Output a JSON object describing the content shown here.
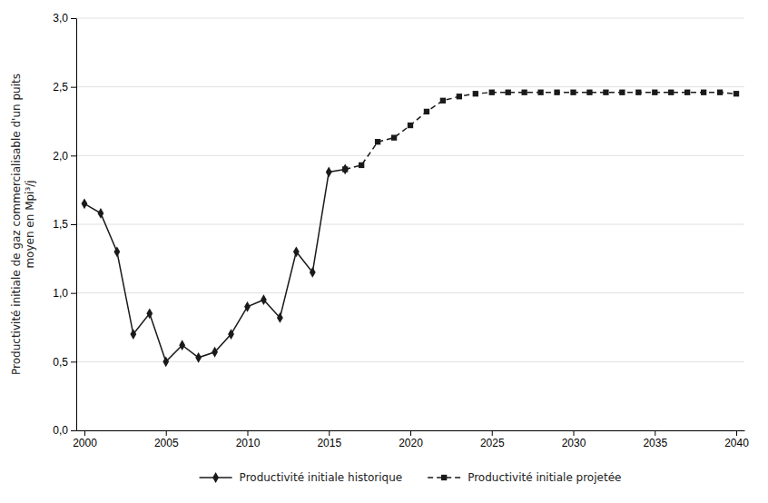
{
  "chart_data": {
    "type": "line",
    "ylabel": [
      "Productivité initiale de gaz commercialisable d'un puits",
      "moyen en Mpi³/j"
    ],
    "x": [
      2000,
      2001,
      2002,
      2003,
      2004,
      2005,
      2006,
      2007,
      2008,
      2009,
      2010,
      2011,
      2012,
      2013,
      2014,
      2015,
      2016,
      2017,
      2018,
      2019,
      2020,
      2021,
      2022,
      2023,
      2024,
      2025,
      2026,
      2027,
      2028,
      2029,
      2030,
      2031,
      2032,
      2033,
      2034,
      2035,
      2036,
      2037,
      2038,
      2039,
      2040
    ],
    "series": [
      {
        "name": "Productivité initiale historique",
        "color": "#1a1a1a",
        "marker": "diamond",
        "line_style": "solid",
        "values": [
          1.65,
          1.58,
          1.3,
          0.7,
          0.85,
          0.5,
          0.62,
          0.53,
          0.57,
          0.7,
          0.9,
          0.95,
          0.82,
          1.3,
          1.15,
          1.88,
          1.9,
          null,
          null,
          null,
          null,
          null,
          null,
          null,
          null,
          null,
          null,
          null,
          null,
          null,
          null,
          null,
          null,
          null,
          null,
          null,
          null,
          null,
          null,
          null,
          null
        ]
      },
      {
        "name": "Productivité initiale projetée",
        "color": "#1a1a1a",
        "marker": "square",
        "line_style": "dashed",
        "values": [
          null,
          null,
          null,
          null,
          null,
          null,
          null,
          null,
          null,
          null,
          null,
          null,
          null,
          null,
          null,
          null,
          1.9,
          1.93,
          2.1,
          2.13,
          2.22,
          2.32,
          2.4,
          2.43,
          2.45,
          2.46,
          2.46,
          2.46,
          2.46,
          2.46,
          2.46,
          2.46,
          2.46,
          2.46,
          2.46,
          2.46,
          2.46,
          2.46,
          2.46,
          2.46,
          2.45
        ]
      }
    ],
    "xlim": [
      1999.5,
      2040.5
    ],
    "ylim": [
      0.0,
      3.0
    ],
    "xticks": [
      2000,
      2005,
      2010,
      2015,
      2020,
      2025,
      2030,
      2035,
      2040
    ],
    "yticks": [
      {
        "value": 0.0,
        "label": "0,0"
      },
      {
        "value": 0.5,
        "label": "0,5"
      },
      {
        "value": 1.0,
        "label": "1,0"
      },
      {
        "value": 1.5,
        "label": "1,5"
      },
      {
        "value": 2.0,
        "label": "2,0"
      },
      {
        "value": 2.5,
        "label": "2,5"
      },
      {
        "value": 3.0,
        "label": "3,0"
      }
    ],
    "grid": "y",
    "legend": "bottom"
  }
}
